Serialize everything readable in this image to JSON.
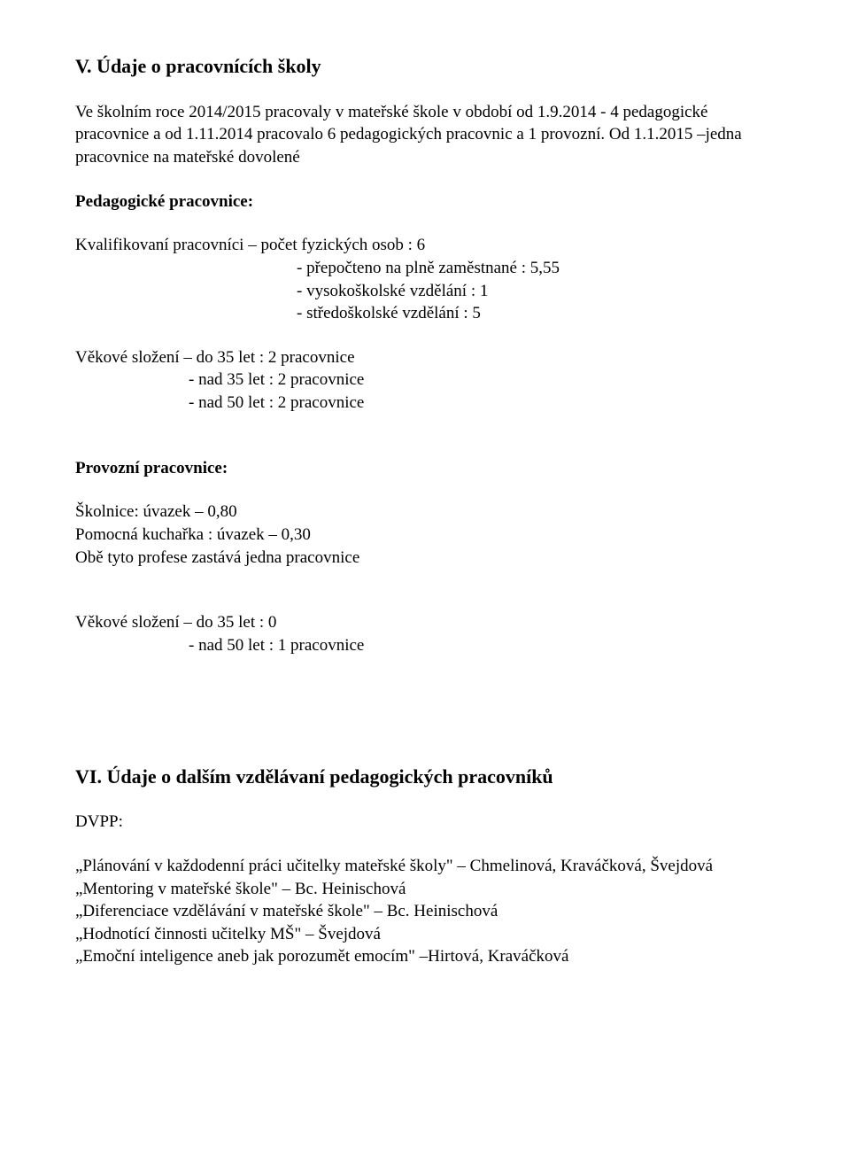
{
  "section_v": {
    "heading": "V. Údaje o pracovnících školy",
    "intro": "Ve školním roce 2014/2015 pracovaly v mateřské škole v období od 1.9.2014 -  4 pedagogické pracovnice a od 1.11.2014 pracovalo 6 pedagogických pracovnic a 1 provozní. Od 1.1.2015 –jedna pracovnice na mateřské dovolené",
    "ped_title": "Pedagogické pracovnice:",
    "qual_line": "Kvalifikovaní pracovníci – počet fyzických osob : 6",
    "qual_sub1": "-  přepočteno na plně zaměstnané : 5,55",
    "qual_sub2": "-  vysokoškolské vzdělání : 1",
    "qual_sub3": "-  středoškolské vzdělání : 5",
    "age1_line1": "Věkové složení – do 35 let   : 2 pracovnice",
    "age1_line2": "- nad 35 let  : 2 pracovnice",
    "age1_line3": "- nad 50 let :  2 pracovnice",
    "prov_title": "Provozní pracovnice:",
    "prov_line1": "Školnice: úvazek – 0,80",
    "prov_line2": "Pomocná kuchařka : úvazek – 0,30",
    "prov_line3": "Obě tyto profese zastává jedna pracovnice",
    "age2_line1": "Věkové složení – do 35 let : 0",
    "age2_line2": "- nad 50 let : 1 pracovnice"
  },
  "section_vi": {
    "heading": "VI. Údaje o dalším vzdělávaní pedagogických pracovníků",
    "dvpp": "DVPP:",
    "item1": "„Plánování v každodenní práci učitelky mateřské školy\" – Chmelinová, Kraváčková, Švejdová",
    "item2": "„Mentoring v mateřské škole\" – Bc. Heinischová",
    "item3": "„Diferenciace vzdělávání v mateřské škole\" – Bc. Heinischová",
    "item4": "„Hodnotící činnosti učitelky MŠ\" – Švejdová",
    "item5": "„Emoční inteligence aneb jak porozumět emocím\" –Hirtová, Kraváčková"
  }
}
